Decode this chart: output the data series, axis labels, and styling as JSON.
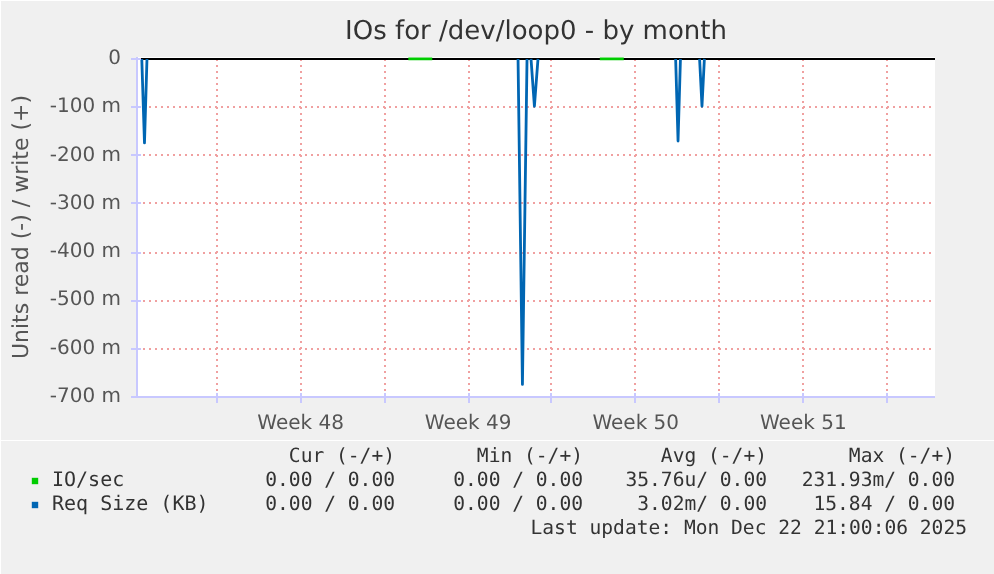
{
  "chart_data": {
    "type": "line",
    "title": "IOs for /dev/loop0 - by month",
    "ylabel": "Units read (-) / write (+)",
    "xlim": [
      "2025-11-20T16:00",
      "2025-12-24T00:00"
    ],
    "ylim": [
      -700,
      4
    ],
    "xticks": [
      {
        "value": "2025-11-24",
        "label": null
      },
      {
        "value": "2025-11-27T12:00",
        "label": "Week 48"
      },
      {
        "value": "2025-12-01",
        "label": null
      },
      {
        "value": "2025-12-04T12:00",
        "label": "Week 49"
      },
      {
        "value": "2025-12-08",
        "label": null
      },
      {
        "value": "2025-12-11T12:00",
        "label": "Week 50"
      },
      {
        "value": "2025-12-15",
        "label": null
      },
      {
        "value": "2025-12-18T12:00",
        "label": "Week 51"
      },
      {
        "value": "2025-12-22",
        "label": null
      }
    ],
    "yticks": [
      {
        "value": -700,
        "label": "-700 m"
      },
      {
        "value": -600,
        "label": "-600 m"
      },
      {
        "value": -500,
        "label": "-500 m"
      },
      {
        "value": -400,
        "label": "-400 m"
      },
      {
        "value": -300,
        "label": "-300 m"
      },
      {
        "value": -200,
        "label": "-200 m"
      },
      {
        "value": -100,
        "label": "-100 m"
      },
      0
    ],
    "grid": true,
    "legend": "bottom",
    "series": [
      {
        "name": "IO/sec",
        "color": "#00cc00",
        "x": [
          "2025-12-02T00:00",
          "2025-12-03T00:00",
          "2025-12-05T00:00",
          "2025-12-10T00:00",
          "2025-12-11T00:00"
        ],
        "values": [
          0,
          0,
          null,
          0,
          0
        ]
      },
      {
        "name": "Req Size (KB)",
        "color": "#0066b3",
        "x": [
          "2025-11-20T20:48",
          "2025-11-20T23:30",
          "2025-11-21T02:00",
          "2025-11-21T16:00",
          "2025-12-06T14:00",
          "2025-12-06T18:24",
          "2025-12-06T23:00",
          "2025-12-07T01:36",
          "2025-12-07T03:00",
          "2025-12-07T06:24",
          "2025-12-07T10:00",
          "2025-12-07T16:00",
          "2025-12-13T04:00",
          "2025-12-13T06:24",
          "2025-12-13T08:48",
          "2025-12-13T16:00",
          "2025-12-14T04:00",
          "2025-12-14T06:24",
          "2025-12-14T08:48"
        ],
        "values": [
          0,
          -174,
          0,
          null,
          0,
          -674,
          0,
          null,
          0,
          -98,
          0,
          null,
          0,
          -170,
          0,
          null,
          0,
          -98,
          0
        ]
      }
    ],
    "ref_lines": [
      {
        "axis": "y",
        "value": 0,
        "color": "#000000"
      }
    ],
    "annotations": [
      "Cur (-/+)",
      "Min (-/+)",
      "Avg (-/+)",
      "Max (-/+)",
      "0.00 / 0.00",
      "0.00 / 0.00",
      "35.76u/ 0.00",
      "231.93m/ 0.00",
      "0.00 / 0.00",
      "0.00 / 0.00",
      "3.02m/ 0.00",
      "15.84 / 0.00",
      "Last update: Mon Dec 22 21:00:06 2025"
    ]
  }
}
